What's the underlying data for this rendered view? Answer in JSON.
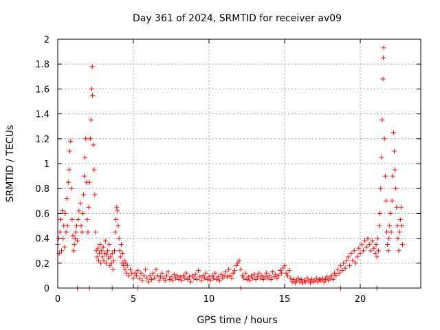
{
  "chart_data": {
    "type": "scatter",
    "title": "Day 361 of 2024, SRMTID for receiver av09",
    "xlabel": "GPS time / hours",
    "ylabel": "SRMTID / TECUs",
    "xlim": [
      0,
      24
    ],
    "ylim": [
      0,
      2
    ],
    "grid": true,
    "marker": "+",
    "color": "#ff0000",
    "xticks": [
      0,
      5,
      10,
      15,
      20
    ],
    "xtick_labels": [
      "0",
      "5",
      "10",
      "15",
      "20"
    ],
    "yticks": [
      0,
      0.2,
      0.4,
      0.6,
      0.8,
      1,
      1.2,
      1.4,
      1.6,
      1.8,
      2
    ],
    "ytick_labels": [
      "0",
      "0.2",
      "0.4",
      "0.6",
      "0.8",
      "1",
      "1.2",
      "1.4",
      "1.6",
      "1.8",
      "2"
    ],
    "series": [
      {
        "name": "SRMTID",
        "points": [
          [
            0.0,
            0.35
          ],
          [
            0.05,
            0.4
          ],
          [
            0.1,
            0.28
          ],
          [
            0.15,
            0.45
          ],
          [
            0.2,
            0.55
          ],
          [
            0.25,
            0.3
          ],
          [
            0.3,
            0.62
          ],
          [
            0.35,
            0.4
          ],
          [
            0.4,
            0.5
          ],
          [
            0.45,
            0.33
          ],
          [
            0.5,
            0.6
          ],
          [
            0.55,
            0.45
          ],
          [
            0.6,
            0.72
          ],
          [
            0.65,
            0.5
          ],
          [
            0.7,
            0.85
          ],
          [
            0.75,
            0.95
          ],
          [
            0.8,
            1.1
          ],
          [
            0.85,
            1.18
          ],
          [
            0.9,
            0.8
          ],
          [
            0.95,
            0.55
          ],
          [
            1.0,
            0.42
          ],
          [
            1.05,
            0.3
          ],
          [
            1.1,
            0.35
          ],
          [
            1.15,
            0.4
          ],
          [
            1.2,
            0.45
          ],
          [
            1.25,
            0.5
          ],
          [
            1.3,
            0.38
          ],
          [
            1.35,
            0.55
          ],
          [
            1.4,
            0.62
          ],
          [
            1.5,
            0.68
          ],
          [
            1.55,
            0.5
          ],
          [
            1.6,
            0.45
          ],
          [
            1.65,
            0.6
          ],
          [
            1.7,
            0.75
          ],
          [
            1.75,
            0.9
          ],
          [
            1.8,
            1.05
          ],
          [
            1.85,
            1.2
          ],
          [
            1.9,
            0.85
          ],
          [
            1.95,
            0.55
          ],
          [
            2.0,
            0.45
          ],
          [
            2.05,
            0.65
          ],
          [
            2.1,
            0.85
          ],
          [
            2.15,
            1.2
          ],
          [
            2.2,
            1.35
          ],
          [
            2.25,
            1.6
          ],
          [
            2.28,
            1.78
          ],
          [
            2.3,
            1.55
          ],
          [
            2.35,
            1.15
          ],
          [
            2.4,
            0.95
          ],
          [
            2.45,
            0.75
          ],
          [
            2.5,
            0.45
          ],
          [
            2.55,
            0.3
          ],
          [
            2.6,
            0.25
          ],
          [
            2.65,
            0.32
          ],
          [
            2.7,
            0.22
          ],
          [
            2.75,
            0.28
          ],
          [
            2.8,
            0.35
          ],
          [
            2.85,
            0.2
          ],
          [
            2.9,
            0.3
          ],
          [
            2.95,
            0.25
          ],
          [
            3.0,
            0.33
          ],
          [
            3.05,
            0.22
          ],
          [
            3.1,
            0.28
          ],
          [
            3.15,
            0.38
          ],
          [
            3.2,
            0.2
          ],
          [
            3.25,
            0.27
          ],
          [
            3.3,
            0.3
          ],
          [
            3.35,
            0.24
          ],
          [
            3.4,
            0.35
          ],
          [
            3.45,
            0.18
          ],
          [
            3.5,
            0.25
          ],
          [
            3.55,
            0.2
          ],
          [
            3.6,
            0.28
          ],
          [
            3.65,
            0.15
          ],
          [
            3.7,
            0.22
          ],
          [
            3.75,
            0.3
          ],
          [
            3.8,
            0.45
          ],
          [
            3.85,
            0.55
          ],
          [
            3.9,
            0.65
          ],
          [
            3.95,
            0.62
          ],
          [
            4.0,
            0.5
          ],
          [
            4.05,
            0.4
          ],
          [
            4.1,
            0.3
          ],
          [
            4.15,
            0.25
          ],
          [
            4.2,
            0.35
          ],
          [
            4.25,
            0.2
          ],
          [
            4.3,
            0.28
          ],
          [
            4.35,
            0.18
          ],
          [
            4.4,
            0.22
          ],
          [
            4.45,
            0.15
          ],
          [
            4.5,
            0.2
          ],
          [
            4.55,
            0.12
          ],
          [
            4.6,
            0.18
          ],
          [
            4.7,
            0.1
          ],
          [
            4.8,
            0.15
          ],
          [
            4.9,
            0.12
          ],
          [
            5.0,
            0.08
          ],
          [
            5.1,
            0.12
          ],
          [
            5.2,
            0.1
          ],
          [
            5.3,
            0.14
          ],
          [
            5.4,
            0.08
          ],
          [
            5.5,
            0.12
          ],
          [
            5.6,
            0.06
          ],
          [
            5.7,
            0.1
          ],
          [
            5.8,
            0.15
          ],
          [
            5.9,
            0.08
          ],
          [
            6.0,
            0.05
          ],
          [
            6.1,
            0.1
          ],
          [
            6.2,
            0.07
          ],
          [
            6.3,
            0.12
          ],
          [
            6.4,
            0.08
          ],
          [
            6.5,
            0.15
          ],
          [
            6.6,
            0.1
          ],
          [
            6.7,
            0.06
          ],
          [
            6.8,
            0.09
          ],
          [
            6.9,
            0.12
          ],
          [
            7.0,
            0.08
          ],
          [
            7.1,
            0.06
          ],
          [
            7.2,
            0.1
          ],
          [
            7.3,
            0.13
          ],
          [
            7.4,
            0.07
          ],
          [
            7.5,
            0.09
          ],
          [
            7.6,
            0.06
          ],
          [
            7.7,
            0.11
          ],
          [
            7.8,
            0.08
          ],
          [
            7.9,
            0.1
          ],
          [
            8.0,
            0.07
          ],
          [
            8.1,
            0.09
          ],
          [
            8.2,
            0.06
          ],
          [
            8.3,
            0.1
          ],
          [
            8.4,
            0.08
          ],
          [
            8.5,
            0.12
          ],
          [
            8.6,
            0.07
          ],
          [
            8.7,
            0.09
          ],
          [
            8.8,
            0.05
          ],
          [
            8.9,
            0.1
          ],
          [
            9.0,
            0.08
          ],
          [
            9.1,
            0.11
          ],
          [
            9.2,
            0.07
          ],
          [
            9.3,
            0.14
          ],
          [
            9.4,
            0.09
          ],
          [
            9.5,
            0.06
          ],
          [
            9.6,
            0.1
          ],
          [
            9.7,
            0.08
          ],
          [
            9.8,
            0.12
          ],
          [
            9.9,
            0.07
          ],
          [
            10.0,
            0.09
          ],
          [
            10.1,
            0.06
          ],
          [
            10.2,
            0.1
          ],
          [
            10.3,
            0.08
          ],
          [
            10.4,
            0.12
          ],
          [
            10.5,
            0.07
          ],
          [
            10.6,
            0.09
          ],
          [
            10.7,
            0.06
          ],
          [
            10.8,
            0.11
          ],
          [
            10.9,
            0.08
          ],
          [
            11.0,
            0.1
          ],
          [
            11.1,
            0.13
          ],
          [
            11.2,
            0.09
          ],
          [
            11.3,
            0.15
          ],
          [
            11.4,
            0.1
          ],
          [
            11.5,
            0.08
          ],
          [
            11.6,
            0.12
          ],
          [
            11.7,
            0.14
          ],
          [
            11.8,
            0.18
          ],
          [
            11.9,
            0.2
          ],
          [
            12.0,
            0.22
          ],
          [
            12.1,
            0.15
          ],
          [
            12.2,
            0.1
          ],
          [
            12.3,
            0.08
          ],
          [
            12.4,
            0.12
          ],
          [
            12.5,
            0.07
          ],
          [
            12.6,
            0.09
          ],
          [
            12.7,
            0.06
          ],
          [
            12.8,
            0.1
          ],
          [
            12.9,
            0.08
          ],
          [
            13.0,
            0.11
          ],
          [
            13.1,
            0.07
          ],
          [
            13.2,
            0.09
          ],
          [
            13.3,
            0.12
          ],
          [
            13.4,
            0.08
          ],
          [
            13.5,
            0.1
          ],
          [
            13.6,
            0.07
          ],
          [
            13.7,
            0.09
          ],
          [
            13.8,
            0.12
          ],
          [
            13.9,
            0.08
          ],
          [
            14.0,
            0.1
          ],
          [
            14.1,
            0.07
          ],
          [
            14.2,
            0.13
          ],
          [
            14.3,
            0.09
          ],
          [
            14.4,
            0.11
          ],
          [
            14.5,
            0.08
          ],
          [
            14.6,
            0.1
          ],
          [
            14.7,
            0.14
          ],
          [
            14.8,
            0.12
          ],
          [
            14.9,
            0.16
          ],
          [
            15.0,
            0.18
          ],
          [
            15.1,
            0.12
          ],
          [
            15.2,
            0.1
          ],
          [
            15.3,
            0.14
          ],
          [
            15.4,
            0.08
          ],
          [
            15.5,
            0.05
          ],
          [
            15.6,
            0.07
          ],
          [
            15.7,
            0.04
          ],
          [
            15.8,
            0.06
          ],
          [
            15.9,
            0.08
          ],
          [
            16.0,
            0.05
          ],
          [
            16.1,
            0.07
          ],
          [
            16.2,
            0.04
          ],
          [
            16.3,
            0.06
          ],
          [
            16.4,
            0.05
          ],
          [
            16.5,
            0.08
          ],
          [
            16.6,
            0.06
          ],
          [
            16.7,
            0.04
          ],
          [
            16.8,
            0.07
          ],
          [
            16.9,
            0.05
          ],
          [
            17.0,
            0.06
          ],
          [
            17.1,
            0.08
          ],
          [
            17.2,
            0.05
          ],
          [
            17.3,
            0.07
          ],
          [
            17.4,
            0.06
          ],
          [
            17.5,
            0.08
          ],
          [
            17.6,
            0.05
          ],
          [
            17.7,
            0.07
          ],
          [
            17.8,
            0.09
          ],
          [
            17.9,
            0.06
          ],
          [
            18.0,
            0.08
          ],
          [
            18.1,
            0.1
          ],
          [
            18.2,
            0.07
          ],
          [
            18.3,
            0.12
          ],
          [
            18.4,
            0.1
          ],
          [
            18.5,
            0.15
          ],
          [
            18.6,
            0.12
          ],
          [
            18.7,
            0.18
          ],
          [
            18.8,
            0.14
          ],
          [
            18.9,
            0.2
          ],
          [
            19.0,
            0.16
          ],
          [
            19.1,
            0.22
          ],
          [
            19.2,
            0.25
          ],
          [
            19.3,
            0.18
          ],
          [
            19.4,
            0.28
          ],
          [
            19.5,
            0.22
          ],
          [
            19.6,
            0.3
          ],
          [
            19.7,
            0.2
          ],
          [
            19.8,
            0.25
          ],
          [
            19.9,
            0.32
          ],
          [
            20.0,
            0.28
          ],
          [
            20.1,
            0.35
          ],
          [
            20.2,
            0.3
          ],
          [
            20.3,
            0.38
          ],
          [
            20.4,
            0.33
          ],
          [
            20.5,
            0.4
          ],
          [
            20.6,
            0.35
          ],
          [
            20.7,
            0.3
          ],
          [
            20.8,
            0.38
          ],
          [
            20.9,
            0.32
          ],
          [
            21.0,
            0.28
          ],
          [
            21.05,
            0.35
          ],
          [
            21.1,
            0.25
          ],
          [
            21.15,
            0.4
          ],
          [
            21.2,
            0.3
          ],
          [
            21.25,
            0.5
          ],
          [
            21.3,
            0.6
          ],
          [
            21.35,
            0.8
          ],
          [
            21.4,
            1.05
          ],
          [
            21.45,
            1.35
          ],
          [
            21.5,
            1.68
          ],
          [
            21.52,
            1.85
          ],
          [
            21.55,
            1.93
          ],
          [
            21.6,
            1.2
          ],
          [
            21.65,
            0.9
          ],
          [
            21.7,
            0.7
          ],
          [
            21.75,
            0.45
          ],
          [
            21.8,
            0.35
          ],
          [
            21.85,
            0.3
          ],
          [
            21.9,
            0.4
          ],
          [
            21.95,
            0.5
          ],
          [
            22.0,
            0.6
          ],
          [
            22.05,
            0.45
          ],
          [
            22.1,
            0.7
          ],
          [
            22.15,
            0.9
          ],
          [
            22.2,
            1.25
          ],
          [
            22.25,
            1.1
          ],
          [
            22.3,
            0.95
          ],
          [
            22.35,
            0.8
          ],
          [
            22.4,
            0.65
          ],
          [
            22.45,
            0.5
          ],
          [
            22.5,
            0.4
          ],
          [
            22.55,
            0.3
          ],
          [
            22.6,
            0.45
          ],
          [
            22.65,
            0.55
          ],
          [
            22.7,
            0.65
          ],
          [
            22.75,
            0.5
          ],
          [
            22.8,
            0.35
          ],
          [
            1.3,
            0.0
          ],
          [
            2.1,
            0.0
          ],
          [
            3.6,
            0.0
          ],
          [
            5.3,
            0.0
          ],
          [
            12.1,
            0.0
          ],
          [
            18.7,
            0.0
          ],
          [
            21.1,
            0.0
          ]
        ]
      }
    ]
  }
}
